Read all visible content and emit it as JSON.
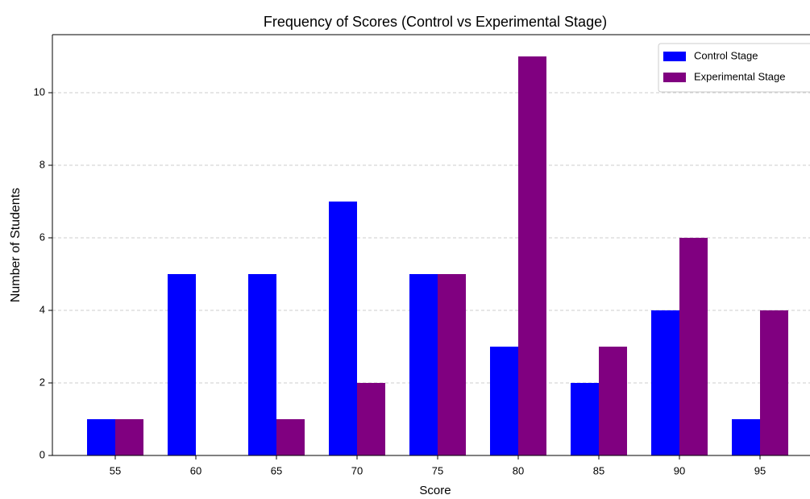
{
  "chart_data": {
    "type": "bar",
    "title": "Frequency of Scores (Control vs Experimental Stage)",
    "x_label": "Score",
    "y_label": "Number of Students",
    "categories": [
      "55",
      "60",
      "65",
      "70",
      "75",
      "80",
      "85",
      "90",
      "95"
    ],
    "series": [
      {
        "name": "Control Stage",
        "color": "#0000ff",
        "values": [
          1,
          5,
          5,
          7,
          5,
          3,
          2,
          4,
          1
        ]
      },
      {
        "name": "Experimental Stage",
        "color": "#800080",
        "values": [
          1,
          0,
          1,
          2,
          5,
          11,
          3,
          6,
          4
        ]
      }
    ],
    "ylim": [
      0,
      11.6
    ],
    "yticks": [
      0,
      2,
      4,
      6,
      8,
      10
    ],
    "grid": true,
    "legend": "upper right"
  }
}
